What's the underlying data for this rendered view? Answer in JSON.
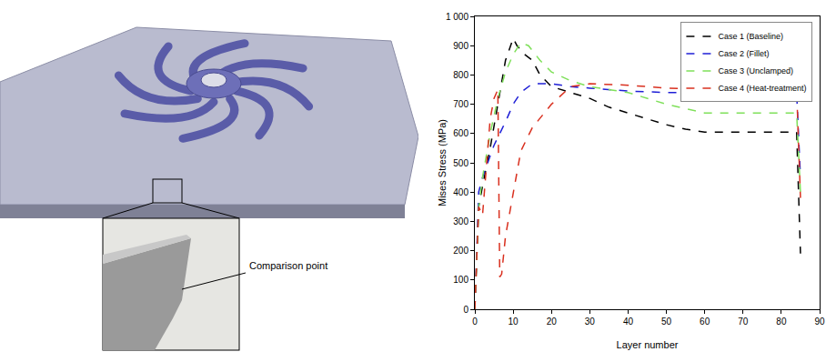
{
  "chart_data": {
    "type": "line",
    "x_label": "Layer number",
    "y_label": "Mises Stress (MPa)",
    "xlim": [
      0,
      90
    ],
    "xticks": [
      0,
      10,
      20,
      30,
      40,
      50,
      60,
      70,
      80,
      90
    ],
    "ylim": [
      0,
      1000
    ],
    "yticks": [
      0,
      100,
      200,
      300,
      400,
      500,
      600,
      700,
      800,
      900,
      {
        "value": 1000,
        "label": "1 000"
      }
    ],
    "grid": false,
    "legend": "top-right",
    "line_style": "dash",
    "series": [
      {
        "name": "Case 1 (Baseline)",
        "color": "#000000",
        "x": [
          0,
          1,
          2,
          4,
          6,
          8,
          10,
          11,
          13,
          15,
          17,
          20,
          25,
          30,
          35,
          40,
          45,
          50,
          55,
          60,
          70,
          80,
          84,
          85
        ],
        "values": [
          0,
          350,
          420,
          550,
          700,
          850,
          925,
          900,
          870,
          850,
          800,
          760,
          740,
          720,
          690,
          670,
          650,
          630,
          615,
          605,
          605,
          605,
          605,
          190
        ]
      },
      {
        "name": "Case 2 (Fillet)",
        "color": "#1f1fd6",
        "x": [
          0,
          1,
          2,
          5,
          8,
          10,
          12,
          15,
          20,
          25,
          30,
          40,
          50,
          60,
          70,
          80,
          84,
          85
        ],
        "values": [
          0,
          400,
          450,
          560,
          640,
          700,
          740,
          770,
          770,
          760,
          755,
          745,
          740,
          738,
          738,
          738,
          738,
          450
        ]
      },
      {
        "name": "Case 3 (Unclamped)",
        "color": "#7fe05a",
        "x": [
          0,
          1,
          2,
          4,
          6,
          8,
          10,
          12,
          14,
          17,
          20,
          25,
          30,
          40,
          50,
          55,
          60,
          70,
          80,
          84,
          85
        ],
        "values": [
          0,
          350,
          450,
          600,
          720,
          810,
          870,
          910,
          900,
          850,
          810,
          780,
          760,
          740,
          700,
          685,
          670,
          670,
          670,
          670,
          400
        ]
      },
      {
        "name": "Case 4 (Heat-treatment)",
        "color": "#d9301f",
        "x": [
          0,
          1,
          2,
          4,
          5,
          6,
          6.5,
          7,
          8,
          10,
          12,
          15,
          20,
          25,
          30,
          40,
          50,
          60,
          70,
          80,
          84,
          85
        ],
        "values": [
          0,
          350,
          320,
          650,
          720,
          750,
          110,
          120,
          250,
          400,
          540,
          620,
          700,
          760,
          770,
          765,
          755,
          750,
          750,
          750,
          750,
          380
        ]
      }
    ]
  },
  "figure": {
    "callout": "Comparison point"
  }
}
